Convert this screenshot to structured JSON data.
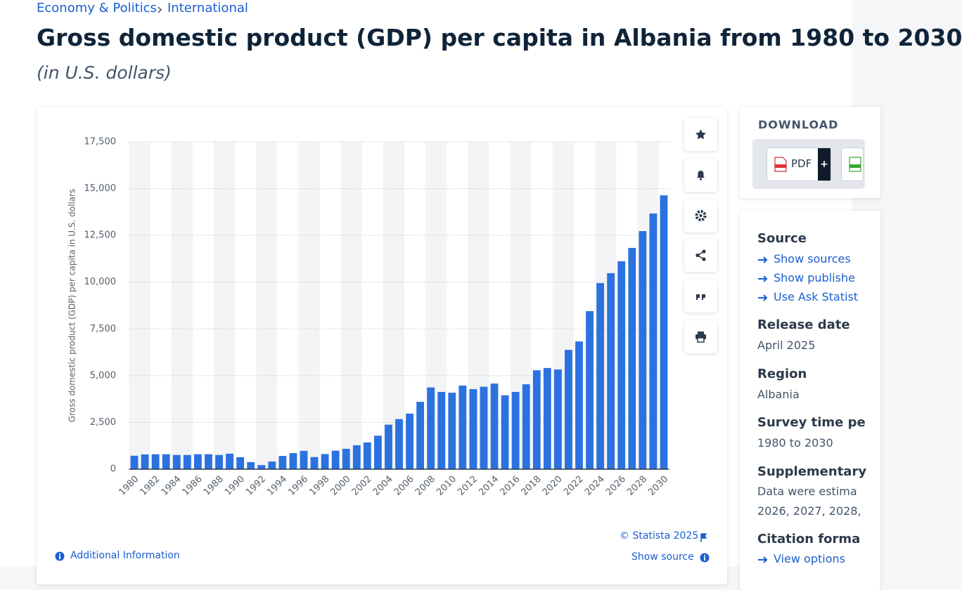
{
  "breadcrumb": [
    "Economy & Politics",
    "International"
  ],
  "header": {
    "title": "Gross domestic product (GDP) per capita in Albania from 1980 to 2030",
    "subtitle": "(in U.S. dollars)"
  },
  "chart_data": {
    "type": "bar",
    "y_label": "Gross domestic product (GDP) per capita in U.S. dollars",
    "categories": [
      "1980",
      null,
      "1982",
      null,
      "1984",
      null,
      "1986",
      null,
      "1988",
      null,
      "1990",
      null,
      "1992",
      null,
      "1994",
      null,
      "1996",
      null,
      "1998",
      null,
      "2000",
      null,
      "2002",
      null,
      "2004",
      null,
      "2006",
      null,
      "2008",
      null,
      "2010",
      null,
      "2012",
      null,
      "2014",
      null,
      "2016",
      null,
      "2018",
      null,
      "2020",
      null,
      "2022",
      null,
      "2024",
      null,
      "2026",
      null,
      "2028",
      null,
      "2030"
    ],
    "values": [
      720,
      790,
      800,
      800,
      760,
      760,
      800,
      800,
      760,
      830,
      640,
      380,
      220,
      410,
      710,
      860,
      980,
      650,
      810,
      990,
      1090,
      1280,
      1430,
      1790,
      2380,
      2680,
      2970,
      3600,
      4370,
      4130,
      4090,
      4470,
      4280,
      4410,
      4580,
      3950,
      4130,
      4540,
      5290,
      5410,
      5330,
      6380,
      6830,
      8450,
      9950,
      10480,
      11120,
      11830,
      12730,
      13670,
      14640
    ],
    "color": "#2b72e0",
    "ylim": [
      0,
      17500
    ],
    "yticks": [
      0,
      {
        "value": 2500,
        "label": "2,500"
      },
      {
        "value": 5000,
        "label": "5,000"
      },
      {
        "value": 7500,
        "label": "7,500"
      },
      {
        "value": 10000,
        "label": "10,000"
      },
      {
        "value": 12500,
        "label": "12,500"
      },
      {
        "value": 15000,
        "label": "15,000"
      },
      {
        "value": 17500,
        "label": "17,500"
      }
    ],
    "grid": true
  },
  "chart_footer": {
    "copyright": "© Statista 2025",
    "show_source": "Show source",
    "additional_info": "Additional Information"
  },
  "download": {
    "heading": "DOWNLOAD",
    "pdf": "PDF"
  },
  "sidebar": {
    "source": {
      "heading": "Source",
      "links": [
        "Show sources",
        "Show publishe",
        "Use Ask Statist"
      ]
    },
    "release_date": {
      "heading": "Release date",
      "value": "April 2025"
    },
    "region": {
      "heading": "Region",
      "value": "Albania"
    },
    "survey_period": {
      "heading": "Survey time pe",
      "value": "1980 to 2030"
    },
    "supplementary": {
      "heading": "Supplementary",
      "lines": [
        "Data were estima",
        "2026, 2027, 2028,"
      ]
    },
    "citation": {
      "heading": "Citation forma",
      "link": "View options"
    }
  }
}
